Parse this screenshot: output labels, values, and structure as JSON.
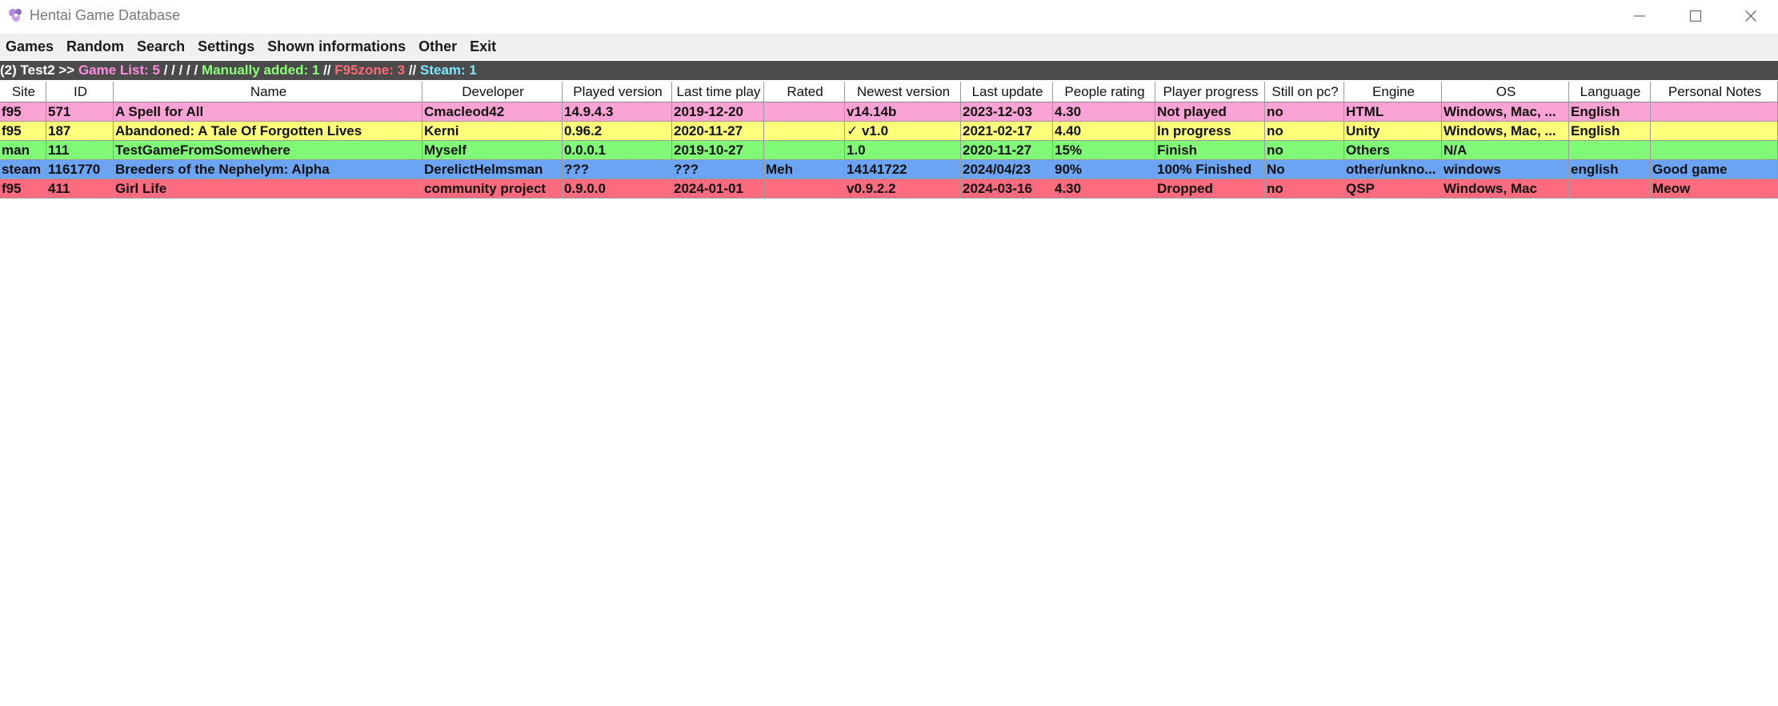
{
  "window": {
    "title": "Hentai Game Database",
    "minimize_glyph": "—",
    "maximize_glyph": "☐",
    "close_glyph": "✕"
  },
  "menu": {
    "items": [
      "Games",
      "Random",
      "Search",
      "Settings",
      "Shown informations",
      "Other",
      "Exit"
    ]
  },
  "info": {
    "prefix": "(2) Test2 >> ",
    "game_list": "Game List: 5",
    "slashes": " / / / / / ",
    "manually_added": "Manually added: 1",
    "sep1": " // ",
    "f95zone": "F95zone: 3",
    "sep2": " // ",
    "steam": "Steam: 1"
  },
  "colors": {
    "pink": "#fba3d4",
    "yellow": "#ffff7a",
    "green": "#80f977",
    "blue": "#6aa4f2",
    "red": "#fe6b7e"
  },
  "table": {
    "columns": [
      "Site",
      "ID",
      "Name",
      "Developer",
      "Played version",
      "Last time play",
      "Rated",
      "Newest version",
      "Last update",
      "People rating",
      "Player progress",
      "Still on pc?",
      "Engine",
      "OS",
      "Language",
      "Personal Notes"
    ],
    "rows": [
      {
        "color": "pink",
        "cells": [
          "f95",
          "571",
          "A Spell for All",
          "Cmacleod42",
          "14.9.4.3",
          "2019-12-20",
          "",
          "v14.14b",
          "2023-12-03",
          "4.30",
          "Not played",
          "no",
          "HTML",
          "Windows, Mac, ...",
          "English",
          ""
        ]
      },
      {
        "color": "yellow",
        "cells": [
          "f95",
          "187",
          "Abandoned: A Tale Of Forgotten Lives",
          "Kerni",
          "0.96.2",
          "2020-11-27",
          "",
          "✓ v1.0",
          "2021-02-17",
          "4.40",
          "In progress",
          "no",
          "Unity",
          "Windows, Mac, ...",
          "English",
          ""
        ]
      },
      {
        "color": "green",
        "cells": [
          "man",
          "111",
          "TestGameFromSomewhere",
          "Myself",
          "0.0.0.1",
          "2019-10-27",
          "",
          "1.0",
          "2020-11-27",
          "15%",
          "Finish",
          "no",
          "Others",
          "N/A",
          "",
          ""
        ]
      },
      {
        "color": "blue",
        "cells": [
          "steam",
          "1161770",
          "Breeders of the Nephelym: Alpha",
          "DerelictHelmsman",
          "???",
          "???",
          "Meh",
          "14141722",
          "2024/04/23",
          "90%",
          "100% Finished",
          "No",
          "other/unkno...",
          "windows",
          "english",
          "Good game"
        ]
      },
      {
        "color": "red",
        "cells": [
          "f95",
          "411",
          "Girl Life",
          "community project",
          "0.9.0.0",
          "2024-01-01",
          "",
          "v0.9.2.2",
          "2024-03-16",
          "4.30",
          "Dropped",
          "no",
          "QSP",
          "Windows, Mac",
          "",
          "Meow"
        ]
      }
    ]
  }
}
